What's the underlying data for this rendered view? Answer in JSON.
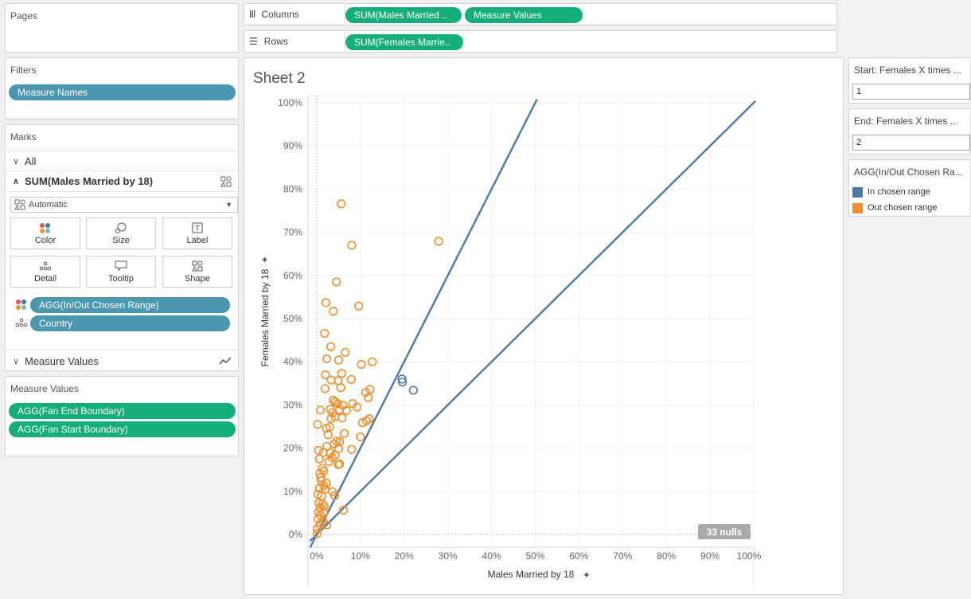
{
  "pages": {
    "title": "Pages"
  },
  "filters": {
    "title": "Filters",
    "pills": [
      "Measure Names"
    ]
  },
  "marks": {
    "title": "Marks",
    "all_label": "All",
    "measure_label": "SUM(Males Married by 18)",
    "mark_type": "Automatic",
    "buttons": {
      "color": "Color",
      "size": "Size",
      "label": "Label",
      "detail": "Detail",
      "tooltip": "Tooltip",
      "shape": "Shape"
    },
    "pills": [
      "AGG(In/Out Chosen Range)",
      "Country"
    ],
    "measure_values_label": "Measure Values"
  },
  "measure_values_card": {
    "title": "Measure Values",
    "pills": [
      "AGG(Fan End Boundary)",
      "AGG(Fan Start Boundary)"
    ]
  },
  "shelves": {
    "columns_label": "Columns",
    "columns_pills": [
      "SUM(Males Married ..",
      "Measure Values"
    ],
    "rows_label": "Rows",
    "rows_pills": [
      "SUM(Females Marrie.."
    ]
  },
  "sheet": {
    "title": "Sheet 2",
    "nulls_badge": "33 nulls"
  },
  "params": {
    "start": {
      "title": "Start: Females X times ...",
      "value": "1"
    },
    "end": {
      "title": "End: Females X times ...",
      "value": "2"
    }
  },
  "legend": {
    "title": "AGG(In/Out Chosen Ra...",
    "items": [
      {
        "label": "In chosen range",
        "color": "#4e79a7"
      },
      {
        "label": "Out chosen range",
        "color": "#f28e2b"
      }
    ]
  },
  "chart_data": {
    "type": "scatter",
    "xlabel": "Males Married by 18",
    "ylabel": "Females Married by 18",
    "xlim": [
      0,
      100
    ],
    "ylim": [
      0,
      100
    ],
    "x_ticks": [
      "0%",
      "10%",
      "20%",
      "30%",
      "40%",
      "50%",
      "60%",
      "70%",
      "80%",
      "90%",
      "100%"
    ],
    "y_ticks": [
      "0%",
      "10%",
      "20%",
      "30%",
      "40%",
      "50%",
      "60%",
      "70%",
      "80%",
      "90%",
      "100%"
    ],
    "grid": true,
    "boundary_lines": [
      {
        "name": "AGG(Fan End Boundary)",
        "slope": 2,
        "color": "#4e79a7"
      },
      {
        "name": "AGG(Fan Start Boundary)",
        "slope": 1,
        "color": "#4e79a7"
      }
    ],
    "series": [
      {
        "name": "In chosen range",
        "color": "#4e79a7",
        "points": [
          [
            19.5,
            36.0
          ],
          [
            19.6,
            35.3
          ],
          [
            22.1,
            33.4
          ]
        ]
      },
      {
        "name": "Out chosen range",
        "color": "#f28e2b",
        "points": [
          [
            5.6,
            76.6
          ],
          [
            8.0,
            67.0
          ],
          [
            27.9,
            67.9
          ],
          [
            4.5,
            58.5
          ],
          [
            2.1,
            53.7
          ],
          [
            3.8,
            51.7
          ],
          [
            9.6,
            52.9
          ],
          [
            1.8,
            46.6
          ],
          [
            3.2,
            43.5
          ],
          [
            6.5,
            42.2
          ],
          [
            2.3,
            40.7
          ],
          [
            5.0,
            40.4
          ],
          [
            10.2,
            39.4
          ],
          [
            12.7,
            40.0
          ],
          [
            5.7,
            37.3
          ],
          [
            2.0,
            37.0
          ],
          [
            3.3,
            35.8
          ],
          [
            7.9,
            35.9
          ],
          [
            4.9,
            35.6
          ],
          [
            1.9,
            33.8
          ],
          [
            5.5,
            34.0
          ],
          [
            11.2,
            32.9
          ],
          [
            12.2,
            33.6
          ],
          [
            3.8,
            31.1
          ],
          [
            4.2,
            30.7
          ],
          [
            11.8,
            31.7
          ],
          [
            4.8,
            30.3
          ],
          [
            6.0,
            29.9
          ],
          [
            8.2,
            30.3
          ],
          [
            6.8,
            28.7
          ],
          [
            9.2,
            29.5
          ],
          [
            3.1,
            29.0
          ],
          [
            3.6,
            28.2
          ],
          [
            5.2,
            28.9
          ],
          [
            0.8,
            28.8
          ],
          [
            3.3,
            26.9
          ],
          [
            4.2,
            27.3
          ],
          [
            5.8,
            27.0
          ],
          [
            10.5,
            25.9
          ],
          [
            11.4,
            26.3
          ],
          [
            12.0,
            26.8
          ],
          [
            0.2,
            25.5
          ],
          [
            2.2,
            24.6
          ],
          [
            3.0,
            24.9
          ],
          [
            6.3,
            23.4
          ],
          [
            2.6,
            23.1
          ],
          [
            10.0,
            22.6
          ],
          [
            4.5,
            21.6
          ],
          [
            4.0,
            21.0
          ],
          [
            5.2,
            21.5
          ],
          [
            2.3,
            20.4
          ],
          [
            5.0,
            19.9
          ],
          [
            8.0,
            19.7
          ],
          [
            0.4,
            19.5
          ],
          [
            1.5,
            19.0
          ],
          [
            3.1,
            18.9
          ],
          [
            4.2,
            18.4
          ],
          [
            3.5,
            17.8
          ],
          [
            0.6,
            17.5
          ],
          [
            2.8,
            16.9
          ],
          [
            5.2,
            16.3
          ],
          [
            1.3,
            15.3
          ],
          [
            4.9,
            16.2
          ],
          [
            0.7,
            14.1
          ],
          [
            1.6,
            14.7
          ],
          [
            0.9,
            13.2
          ],
          [
            1.1,
            12.4
          ],
          [
            2.2,
            11.9
          ],
          [
            1.6,
            11.3
          ],
          [
            0.6,
            10.7
          ],
          [
            1.9,
            10.5
          ],
          [
            3.6,
            9.9
          ],
          [
            0.3,
            9.3
          ],
          [
            1.1,
            8.9
          ],
          [
            4.1,
            9.0
          ],
          [
            0.5,
            7.3
          ],
          [
            1.3,
            7.1
          ],
          [
            0.8,
            6.2
          ],
          [
            1.7,
            6.5
          ],
          [
            0.4,
            5.2
          ],
          [
            1.6,
            5.1
          ],
          [
            0.9,
            4.4
          ],
          [
            6.1,
            5.6
          ],
          [
            0.3,
            3.6
          ],
          [
            1.4,
            3.1
          ],
          [
            0.7,
            2.3
          ],
          [
            2.3,
            2.2
          ],
          [
            0.1,
            1.3
          ],
          [
            0.1,
            0.2
          ]
        ]
      }
    ]
  }
}
